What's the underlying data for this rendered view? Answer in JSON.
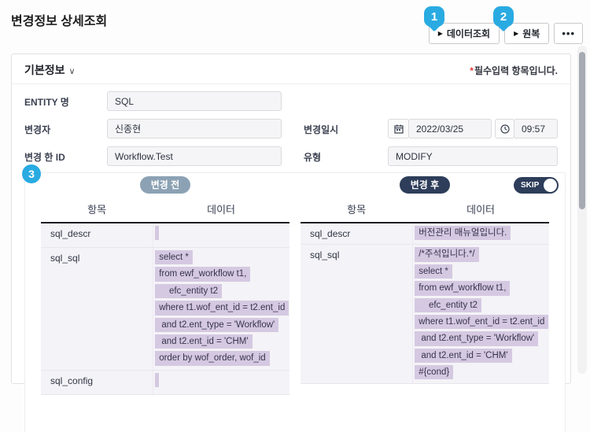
{
  "page": {
    "title": "변경정보 상세조회"
  },
  "toolbar": {
    "arrow": "▶",
    "data_query_label": "데이터조회",
    "restore_label": "원복",
    "more_label": "•••"
  },
  "annotations": {
    "pin1": "1",
    "pin2": "2",
    "pin3": "3"
  },
  "basic_info": {
    "section_title": "기본정보",
    "chevron": "∨",
    "required_star": "*",
    "required_note": "필수입력 항목입니다.",
    "entity": {
      "label": "ENTITY 명",
      "value": "SQL"
    },
    "changer": {
      "label": "변경자",
      "value": "신종현"
    },
    "changed_id": {
      "label": "변경 한 ID",
      "value": "Workflow.Test"
    },
    "datetime": {
      "label": "변경일시",
      "date": "2022/03/25",
      "time": "09:57"
    },
    "type": {
      "label": "유형",
      "value": "MODIFY"
    }
  },
  "comparison": {
    "before_badge": "변경 전",
    "after_badge": "변경 후",
    "skip_label": "SKIP",
    "skip_state": "on",
    "columns": {
      "item": "항목",
      "data": "데이터"
    },
    "before_rows": [
      {
        "item": "sql_descr",
        "lines": [
          ""
        ]
      },
      {
        "item": "sql_sql",
        "lines": [
          "select *",
          "from ewf_workflow t1,",
          "    efc_entity t2",
          "where t1.wof_ent_id = t2.ent_id",
          " and t2.ent_type = 'Workflow'",
          " and t2.ent_id = 'CHM'",
          "order by wof_order, wof_id"
        ]
      },
      {
        "item": "sql_config",
        "lines": [
          ""
        ]
      }
    ],
    "after_rows": [
      {
        "item": "sql_descr",
        "lines": [
          "버전관리 매뉴얼입니다."
        ]
      },
      {
        "item": "sql_sql",
        "lines": [
          "/*주석입니다.*/",
          "select *",
          "from ewf_workflow t1,",
          "    efc_entity t2",
          "where t1.wof_ent_id = t2.ent_id",
          " and t2.ent_type = 'Workflow'",
          " and t2.ent_id = 'CHM'",
          "#{cond}"
        ]
      }
    ]
  },
  "colors": {
    "pin": "#29abe2",
    "badge_before": "#8ca2b4",
    "badge_after": "#2d3d5a",
    "highlight": "#d5c9e2",
    "required": "#e03a3a"
  }
}
